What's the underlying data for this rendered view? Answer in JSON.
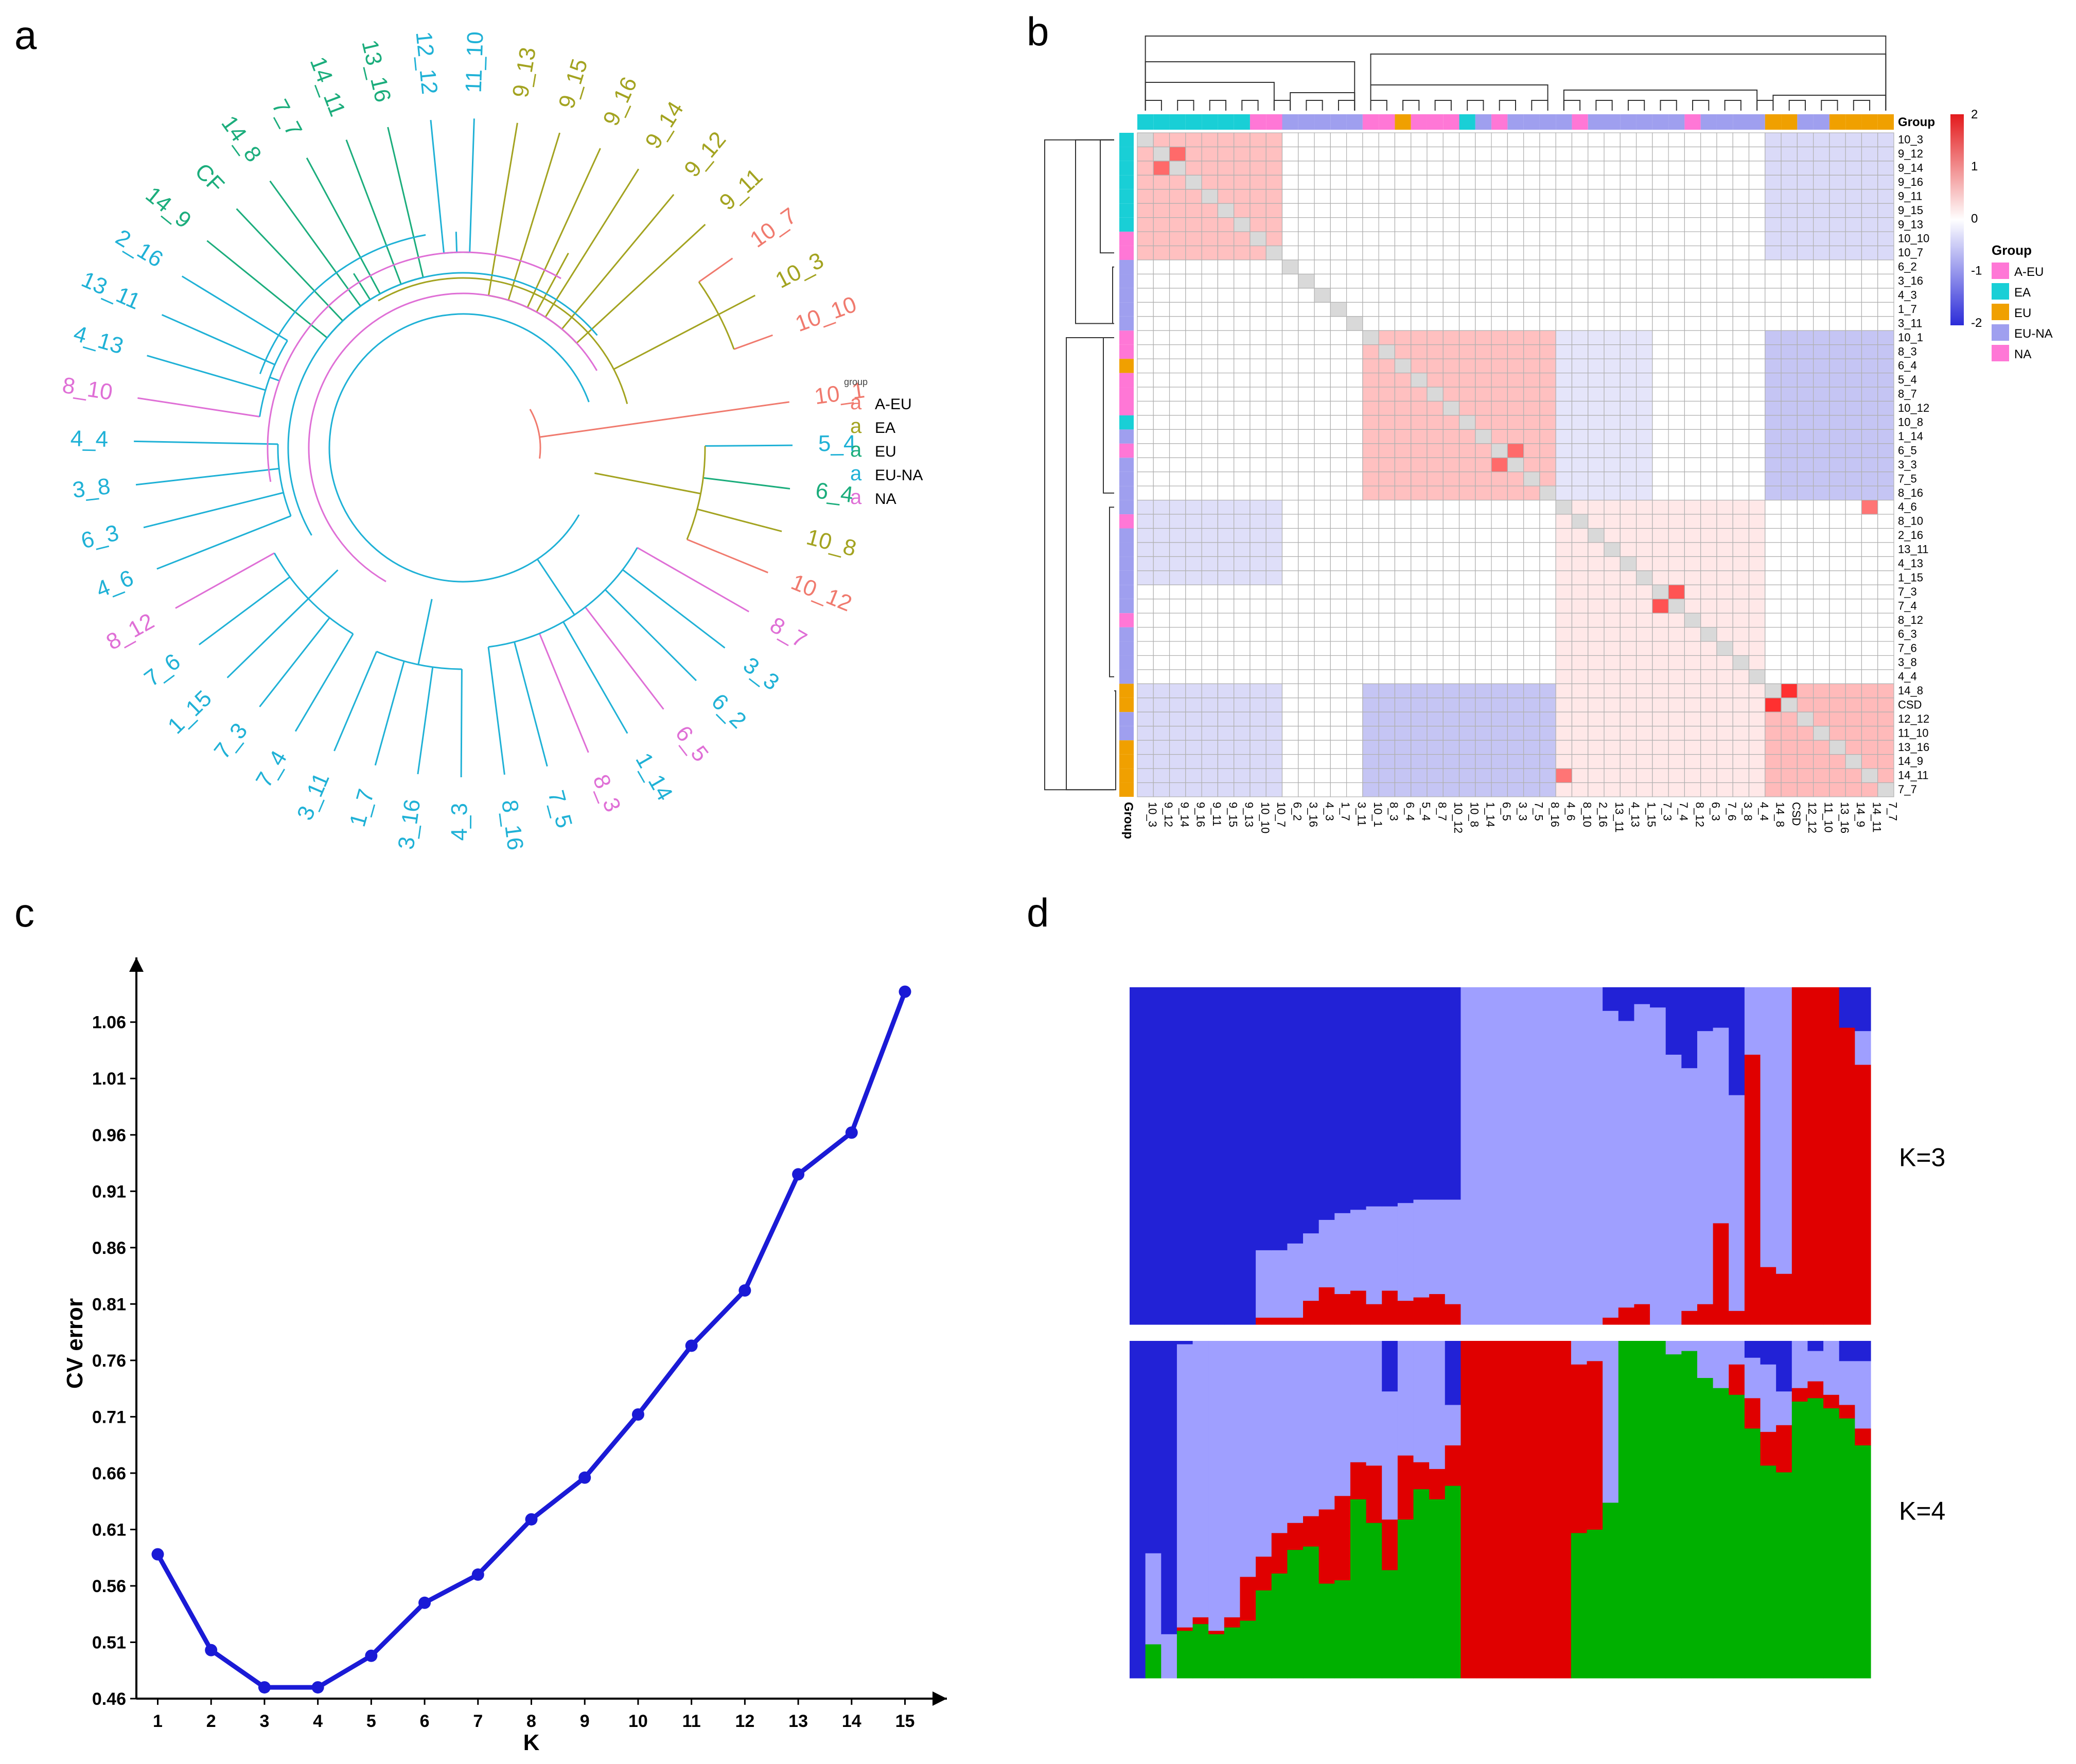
{
  "panels": {
    "a": "a",
    "b": "b",
    "c": "c",
    "d": "d"
  },
  "colors": {
    "A-EU": "#f07a6e",
    "EA": "#a3a320",
    "EU": "#1bad7c",
    "EU-NA": "#1fb1d6",
    "NA": "#df6fd6",
    "heat_pos": "#e31a1c",
    "heat_neg": "#2b2bd8",
    "anno": {
      "A-EU": "#ff77d6",
      "EA": "#19cfd6",
      "EU": "#f0a000",
      "EU-NA": "#9f9fef",
      "NA": "#ff77d6"
    },
    "struct": {
      "dark": "#2222d6",
      "light": "#9f9fff",
      "red": "#e00000",
      "green": "#00b000"
    },
    "cv_line": "#1a1ad6"
  },
  "chart_data": [
    {
      "type": "dendrogram",
      "legend_title": "group",
      "legend": [
        {
          "label": "A-EU",
          "color": "#f07a6e"
        },
        {
          "label": "EA",
          "color": "#a3a320"
        },
        {
          "label": "EU",
          "color": "#1bad7c"
        },
        {
          "label": "EU-NA",
          "color": "#1fb1d6"
        },
        {
          "label": "NA",
          "color": "#df6fd6"
        }
      ],
      "legend_glyph": "a",
      "leaves": [
        {
          "label": "10_1",
          "group": "A-EU"
        },
        {
          "label": "5_4",
          "group": "EU-NA"
        },
        {
          "label": "6_4",
          "group": "EU"
        },
        {
          "label": "10_8",
          "group": "EA"
        },
        {
          "label": "10_12",
          "group": "A-EU"
        },
        {
          "label": "8_7",
          "group": "NA"
        },
        {
          "label": "3_3",
          "group": "EU-NA"
        },
        {
          "label": "6_2",
          "group": "EU-NA"
        },
        {
          "label": "6_5",
          "group": "NA"
        },
        {
          "label": "1_14",
          "group": "EU-NA"
        },
        {
          "label": "8_3",
          "group": "NA"
        },
        {
          "label": "7_5",
          "group": "EU-NA"
        },
        {
          "label": "8_16",
          "group": "EU-NA"
        },
        {
          "label": "4_3",
          "group": "EU-NA"
        },
        {
          "label": "3_16",
          "group": "EU-NA"
        },
        {
          "label": "1_7",
          "group": "EU-NA"
        },
        {
          "label": "3_11",
          "group": "EU-NA"
        },
        {
          "label": "7_4",
          "group": "EU-NA"
        },
        {
          "label": "7_3",
          "group": "EU-NA"
        },
        {
          "label": "1_15",
          "group": "EU-NA"
        },
        {
          "label": "7_6",
          "group": "EU-NA"
        },
        {
          "label": "8_12",
          "group": "NA"
        },
        {
          "label": "4_6",
          "group": "EU-NA"
        },
        {
          "label": "6_3",
          "group": "EU-NA"
        },
        {
          "label": "3_8",
          "group": "EU-NA"
        },
        {
          "label": "4_4",
          "group": "EU-NA"
        },
        {
          "label": "8_10",
          "group": "NA"
        },
        {
          "label": "4_13",
          "group": "EU-NA"
        },
        {
          "label": "13_11",
          "group": "EU-NA"
        },
        {
          "label": "2_16",
          "group": "EU-NA"
        },
        {
          "label": "14_9",
          "group": "EU"
        },
        {
          "label": "CF",
          "group": "EU"
        },
        {
          "label": "14_8",
          "group": "EU"
        },
        {
          "label": "7_7",
          "group": "EU"
        },
        {
          "label": "14_11",
          "group": "EU"
        },
        {
          "label": "13_16",
          "group": "EU"
        },
        {
          "label": "12_12",
          "group": "EU-NA"
        },
        {
          "label": "11_10",
          "group": "EU-NA"
        },
        {
          "label": "9_13",
          "group": "EA"
        },
        {
          "label": "9_15",
          "group": "EA"
        },
        {
          "label": "9_16",
          "group": "EA"
        },
        {
          "label": "9_14",
          "group": "EA"
        },
        {
          "label": "9_12",
          "group": "EA"
        },
        {
          "label": "9_11",
          "group": "EA"
        },
        {
          "label": "10_7",
          "group": "A-EU"
        },
        {
          "label": "10_3",
          "group": "EA"
        },
        {
          "label": "10_10",
          "group": "A-EU"
        }
      ]
    },
    {
      "type": "heatmap",
      "group_label": "Group",
      "scale_ticks": [
        "2",
        "1",
        "0",
        "-1",
        "-2"
      ],
      "legend_title": "Group",
      "legend": [
        "A-EU",
        "EA",
        "EU",
        "EU-NA",
        "NA"
      ],
      "labels": [
        "10_3",
        "9_12",
        "9_14",
        "9_16",
        "9_11",
        "9_15",
        "9_13",
        "10_10",
        "10_7",
        "6_2",
        "3_16",
        "4_3",
        "1_7",
        "3_11",
        "10_1",
        "8_3",
        "6_4",
        "5_4",
        "8_7",
        "10_12",
        "10_8",
        "1_14",
        "6_5",
        "3_3",
        "7_5",
        "8_16",
        "4_6",
        "8_10",
        "2_16",
        "13_11",
        "4_13",
        "1_15",
        "7_3",
        "7_4",
        "8_12",
        "6_3",
        "7_6",
        "3_8",
        "4_4",
        "14_8",
        "CSD",
        "12_12",
        "11_10",
        "13_16",
        "14_9",
        "14_11",
        "7_7"
      ],
      "groups": [
        "EA",
        "EA",
        "EA",
        "EA",
        "EA",
        "EA",
        "EA",
        "NA",
        "NA",
        "EU-NA",
        "EU-NA",
        "EU-NA",
        "EU-NA",
        "EU-NA",
        "NA",
        "NA",
        "EU",
        "NA",
        "NA",
        "NA",
        "EA",
        "EU-NA",
        "NA",
        "EU-NA",
        "EU-NA",
        "EU-NA",
        "EU-NA",
        "NA",
        "EU-NA",
        "EU-NA",
        "EU-NA",
        "EU-NA",
        "EU-NA",
        "EU-NA",
        "NA",
        "EU-NA",
        "EU-NA",
        "EU-NA",
        "EU-NA",
        "EU",
        "EU",
        "EU-NA",
        "EU-NA",
        "EU",
        "EU",
        "EU",
        "EU"
      ],
      "blocks": [
        {
          "rows": [
            0,
            8
          ],
          "cols": [
            0,
            8
          ],
          "value": 0.55
        },
        {
          "rows": [
            14,
            25
          ],
          "cols": [
            14,
            25
          ],
          "value": 0.55
        },
        {
          "rows": [
            26,
            38
          ],
          "cols": [
            26,
            38
          ],
          "value": 0.2
        },
        {
          "rows": [
            39,
            46
          ],
          "cols": [
            39,
            46
          ],
          "value": 0.6
        },
        {
          "rows": [
            0,
            8
          ],
          "cols": [
            39,
            46
          ],
          "value": -0.35
        },
        {
          "rows": [
            39,
            46
          ],
          "cols": [
            0,
            8
          ],
          "value": -0.35
        },
        {
          "rows": [
            14,
            25
          ],
          "cols": [
            39,
            46
          ],
          "value": -0.55
        },
        {
          "rows": [
            39,
            46
          ],
          "cols": [
            14,
            25
          ],
          "value": -0.55
        },
        {
          "rows": [
            26,
            31
          ],
          "cols": [
            0,
            8
          ],
          "value": -0.3
        },
        {
          "rows": [
            14,
            25
          ],
          "cols": [
            26,
            31
          ],
          "value": -0.25
        },
        {
          "rows": [
            39,
            46
          ],
          "cols": [
            26,
            38
          ],
          "value": 0.2
        }
      ],
      "highlights": [
        {
          "row": 1,
          "col": 2,
          "value": 1.3
        },
        {
          "row": 32,
          "col": 33,
          "value": 1.5
        },
        {
          "row": 39,
          "col": 40,
          "value": 1.8
        },
        {
          "row": 22,
          "col": 23,
          "value": 1.3
        },
        {
          "row": 26,
          "col": 45,
          "value": 1.2
        }
      ]
    },
    {
      "type": "line",
      "xlabel": "K",
      "ylabel": "CV error",
      "x": [
        1,
        2,
        3,
        4,
        5,
        6,
        7,
        8,
        9,
        10,
        11,
        12,
        13,
        14,
        15
      ],
      "values": [
        0.588,
        0.503,
        0.47,
        0.47,
        0.498,
        0.545,
        0.57,
        0.619,
        0.656,
        0.712,
        0.773,
        0.822,
        0.925,
        0.962,
        1.087
      ],
      "xticks": [
        "1",
        "2",
        "3",
        "4",
        "5",
        "6",
        "7",
        "8",
        "9",
        "10",
        "11",
        "12",
        "13",
        "14",
        "15"
      ],
      "yticks": [
        "0.46",
        "0.51",
        "0.56",
        "0.61",
        "0.66",
        "0.71",
        "0.76",
        "0.81",
        "0.86",
        "0.91",
        "0.96",
        "1.01",
        "1.06"
      ],
      "ylim": [
        0.46,
        1.09
      ],
      "xlim": [
        0.6,
        15.4
      ],
      "grid": false
    },
    {
      "type": "stacked_bar",
      "n_individuals": 47,
      "panels": [
        {
          "label": "K=3",
          "widths": [
            1,
            1,
            1,
            1,
            1,
            1,
            1,
            1,
            1,
            1,
            1,
            1,
            1,
            1,
            1,
            1,
            1,
            1,
            1,
            1,
            1,
            1,
            1,
            1,
            1,
            1,
            1,
            1,
            1,
            1,
            1,
            1,
            1,
            1,
            1,
            1,
            1,
            1,
            1,
            1,
            1,
            1,
            1,
            1,
            1,
            1,
            1
          ],
          "components": [
            {
              "color": "dark",
              "values": [
                1,
                1,
                1,
                1,
                1,
                1,
                1,
                1,
                0.78,
                0.78,
                0.76,
                0.73,
                0.69,
                0.67,
                0.66,
                0.65,
                0.65,
                0.64,
                0.63,
                0.63,
                0.63,
                0,
                0,
                0,
                0,
                0,
                0,
                0,
                0,
                0,
                0.07,
                0.1,
                0.05,
                0.06,
                0.2,
                0.24,
                0.13,
                0.12,
                0.32,
                0,
                0,
                0,
                0,
                0,
                0,
                0.12,
                0.13
              ]
            },
            {
              "color": "light",
              "values": [
                0,
                0,
                0,
                0,
                0,
                0,
                0,
                0,
                0.2,
                0.2,
                0.22,
                0.2,
                0.2,
                0.24,
                0.24,
                0.29,
                0.25,
                0.29,
                0.29,
                0.28,
                0.31,
                1,
                1,
                1,
                1,
                1,
                1,
                1,
                1,
                1,
                0.91,
                0.85,
                0.89,
                0.94,
                0.8,
                0.72,
                0.81,
                0.58,
                0.64,
                0.2,
                0.83,
                0.85,
                0,
                0,
                0,
                0,
                0.1
              ]
            },
            {
              "color": "red",
              "values": [
                0,
                0,
                0,
                0,
                0,
                0,
                0,
                0,
                0.02,
                0.02,
                0.02,
                0.07,
                0.11,
                0.09,
                0.1,
                0.06,
                0.1,
                0.07,
                0.08,
                0.09,
                0.06,
                0,
                0,
                0,
                0,
                0,
                0,
                0,
                0,
                0,
                0.02,
                0.05,
                0.06,
                0,
                0,
                0.04,
                0.06,
                0.3,
                0.04,
                0.8,
                0.17,
                0.15,
                1,
                1,
                1,
                0.88,
                0.77
              ]
            }
          ]
        },
        {
          "label": "K=4",
          "widths": [
            1,
            1,
            1,
            1,
            1,
            1,
            1,
            1,
            1,
            1,
            1,
            1,
            1,
            1,
            1,
            1,
            1,
            1,
            1,
            1,
            1,
            1,
            1,
            1,
            1,
            1,
            1,
            1,
            1,
            1,
            1,
            1,
            1,
            1,
            1,
            1,
            1,
            1,
            1,
            1,
            1,
            1,
            1,
            1,
            1,
            1,
            1
          ],
          "components": [
            {
              "color": "dark",
              "values": [
                1,
                0.63,
                0.87,
                0.01,
                0,
                0,
                0,
                0,
                0,
                0,
                0,
                0,
                0,
                0,
                0,
                0,
                0.15,
                0,
                0,
                0,
                0.19,
                0,
                0,
                0,
                0,
                0,
                0,
                0,
                0,
                0,
                0,
                0,
                0,
                0,
                0,
                0,
                0,
                0,
                0,
                0.05,
                0.07,
                0.15,
                0,
                0.03,
                0,
                0.06,
                0.06
              ]
            },
            {
              "color": "light",
              "values": [
                0,
                0.27,
                0.13,
                0.84,
                0.82,
                0.86,
                0.82,
                0.7,
                0.64,
                0.57,
                0.54,
                0.52,
                0.5,
                0.46,
                0.36,
                0.37,
                0.38,
                0.34,
                0.36,
                0.38,
                0.12,
                0,
                0,
                0,
                0,
                0,
                0,
                0,
                0.07,
                0.06,
                0.48,
                0,
                0,
                0,
                0.04,
                0.03,
                0.11,
                0.14,
                0.07,
                0.12,
                0.2,
                0.1,
                0.14,
                0.09,
                0.16,
                0.13,
                0.2
              ]
            },
            {
              "color": "red",
              "values": [
                0,
                0,
                0,
                0.01,
                0.02,
                0.01,
                0.03,
                0.13,
                0.1,
                0.12,
                0.08,
                0.09,
                0.22,
                0.25,
                0.11,
                0.17,
                0.15,
                0.19,
                0.08,
                0.09,
                0.12,
                1,
                1,
                1,
                1,
                1,
                1,
                1,
                0.5,
                0.5,
                0,
                0,
                0,
                0,
                0,
                0,
                0,
                0,
                0.09,
                0.09,
                0.1,
                0.14,
                0.04,
                0.05,
                0.04,
                0.04,
                0.05
              ]
            },
            {
              "color": "green",
              "values": [
                0,
                0.1,
                0,
                0.14,
                0.16,
                0.13,
                0.15,
                0.17,
                0.26,
                0.31,
                0.38,
                0.39,
                0.28,
                0.29,
                0.53,
                0.46,
                0.32,
                0.47,
                0.56,
                0.53,
                0.57,
                0,
                0,
                0,
                0,
                0,
                0,
                0,
                0.43,
                0.44,
                0.52,
                1,
                1,
                1,
                0.96,
                0.97,
                0.89,
                0.86,
                0.84,
                0.74,
                0.63,
                0.61,
                0.82,
                0.83,
                0.8,
                0.77,
                0.69
              ]
            }
          ]
        }
      ]
    }
  ]
}
